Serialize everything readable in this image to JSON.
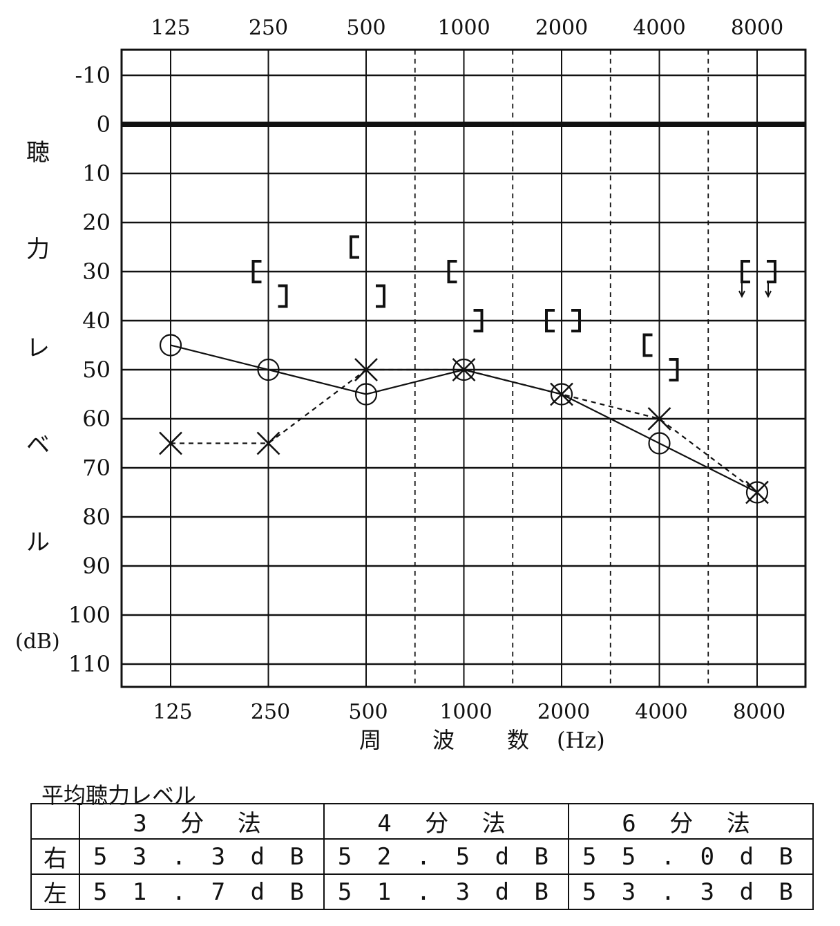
{
  "chart_data": {
    "type": "line",
    "x_categories": [
      "125",
      "250",
      "500",
      "1000",
      "2000",
      "4000",
      "8000"
    ],
    "x_label_parts": [
      "周",
      "波",
      "数",
      "(Hz)"
    ],
    "y_label_chars": [
      "聴",
      "力",
      "レ",
      "ベ",
      "ル"
    ],
    "y_unit": "(dB)",
    "y_ticks": [
      -10,
      0,
      10,
      20,
      30,
      40,
      50,
      60,
      70,
      80,
      90,
      100,
      110
    ],
    "y_range": [
      -15,
      115
    ],
    "y_inverted": true,
    "grid": true,
    "series": [
      {
        "symbol": "O",
        "line": "solid",
        "values": [
          45,
          50,
          55,
          50,
          55,
          65,
          75
        ]
      },
      {
        "symbol": "X",
        "line": "dashed",
        "values": [
          65,
          65,
          50,
          50,
          55,
          60,
          75
        ]
      }
    ],
    "bone_conduction": {
      "open_bracket": [
        null,
        30,
        25,
        30,
        40,
        45,
        30
      ],
      "close_bracket": [
        null,
        35,
        35,
        40,
        40,
        50,
        30
      ],
      "no_response_at": [
        "8000"
      ]
    }
  },
  "average": {
    "title": "平均聴力レベル",
    "columns": [
      "3 分 法",
      "4 分 法",
      "6 分 法"
    ],
    "rows": [
      {
        "side": "右",
        "values": [
          "5 3 . 3  d B",
          "5 2 . 5  d B",
          "5 5 . 0  d B"
        ]
      },
      {
        "side": "左",
        "values": [
          "5 1 . 7  d B",
          "5 1 . 3  d B",
          "5 3 . 3  d B"
        ]
      }
    ]
  }
}
